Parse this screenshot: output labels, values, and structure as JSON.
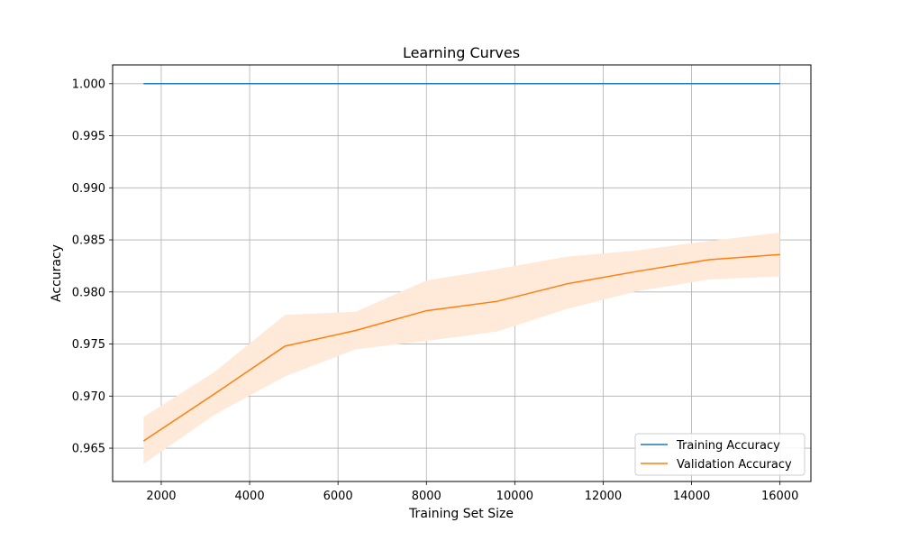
{
  "chart_data": {
    "type": "line",
    "title": "Learning Curves",
    "xlabel": "Training Set Size",
    "ylabel": "Accuracy",
    "xlim": [
      900,
      16700
    ],
    "ylim": [
      0.9618,
      1.0018
    ],
    "xticks": [
      2000,
      4000,
      6000,
      8000,
      10000,
      12000,
      14000,
      16000
    ],
    "yticks": [
      0.965,
      0.97,
      0.975,
      0.98,
      0.985,
      0.99,
      0.995,
      1.0
    ],
    "x": [
      1600,
      3200,
      4800,
      6400,
      8000,
      9600,
      11200,
      12800,
      14400,
      16000
    ],
    "grid": true,
    "legend_position": "lower-right",
    "series": [
      {
        "name": "Training Accuracy",
        "color": "#1f77b4",
        "values": [
          1.0,
          1.0,
          1.0,
          1.0,
          1.0,
          1.0,
          1.0,
          1.0,
          1.0,
          1.0
        ],
        "band_lower": [
          1.0,
          1.0,
          1.0,
          1.0,
          1.0,
          1.0,
          1.0,
          1.0,
          1.0,
          1.0
        ],
        "band_upper": [
          1.0,
          1.0,
          1.0,
          1.0,
          1.0,
          1.0,
          1.0,
          1.0,
          1.0,
          1.0
        ]
      },
      {
        "name": "Validation Accuracy",
        "color": "#ff7f0e",
        "band_color": "#ffe9d9",
        "values": [
          0.9657,
          0.9702,
          0.9748,
          0.9763,
          0.9782,
          0.9791,
          0.9808,
          0.982,
          0.9831,
          0.9836
        ],
        "band_lower": [
          0.9635,
          0.9682,
          0.9719,
          0.9745,
          0.9753,
          0.9762,
          0.9784,
          0.9801,
          0.9812,
          0.9815
        ],
        "band_upper": [
          0.968,
          0.9723,
          0.9778,
          0.9781,
          0.9811,
          0.9822,
          0.9834,
          0.984,
          0.9849,
          0.9857
        ]
      }
    ]
  }
}
